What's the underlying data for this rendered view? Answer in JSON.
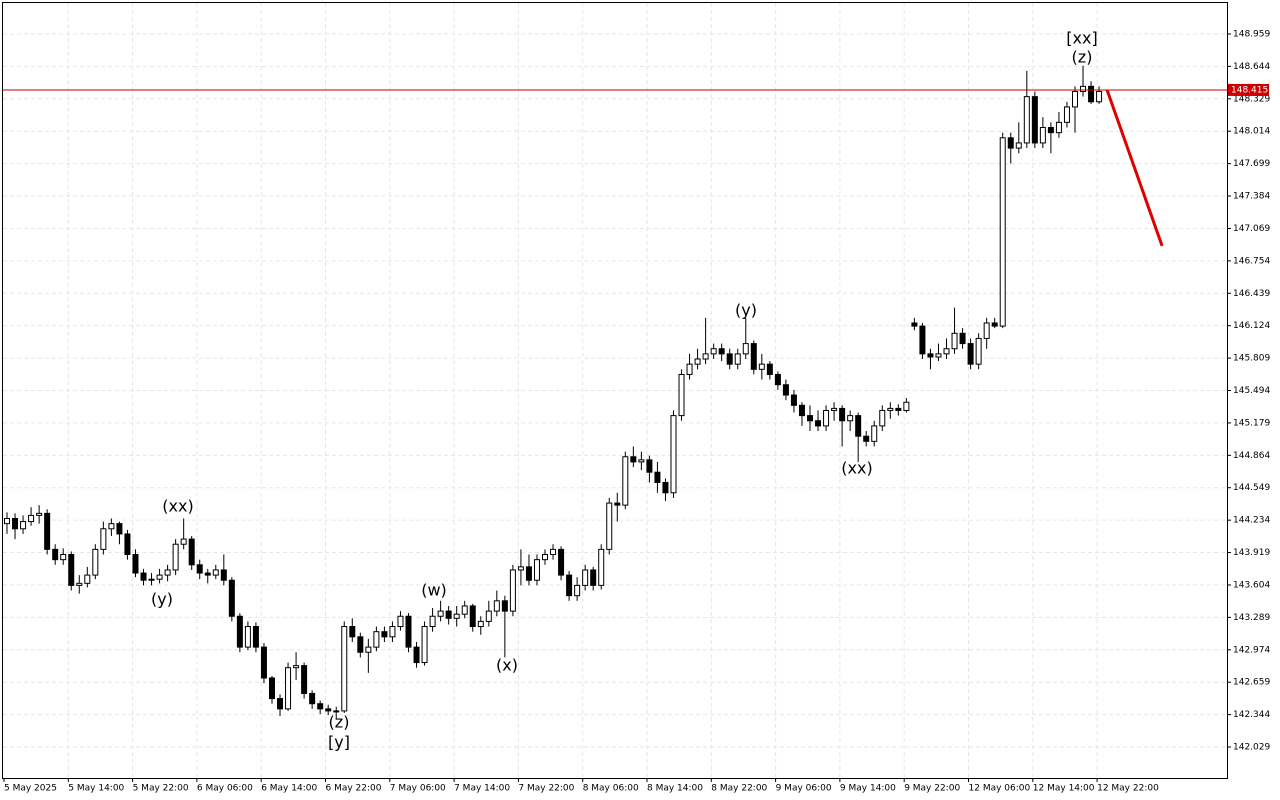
{
  "chart_data": {
    "type": "candlestick",
    "ylim": [
      141.728,
      149.26
    ],
    "yticks": [
      148.959,
      148.644,
      148.329,
      148.014,
      147.699,
      147.384,
      147.069,
      146.754,
      146.439,
      146.124,
      145.809,
      145.494,
      145.179,
      144.864,
      144.549,
      144.234,
      143.919,
      143.604,
      143.289,
      142.974,
      142.659,
      142.344,
      142.029
    ],
    "grid": true,
    "up_color": "#ffffff",
    "down_color": "#000000",
    "xlabels": [
      "5 May 2025",
      "5 May 14:00",
      "5 May 22:00",
      "6 May 06:00",
      "6 May 14:00",
      "6 May 22:00",
      "7 May 06:00",
      "7 May 14:00",
      "7 May 22:00",
      "8 May 06:00",
      "8 May 14:00",
      "8 May 22:00",
      "9 May 06:00",
      "9 May 14:00",
      "9 May 22:00",
      "12 May 06:00",
      "12 May 14:00",
      "12 May 22:00"
    ],
    "current_price": 148.415,
    "current_color": "#cc0000",
    "forecast": {
      "values": [
        148.415,
        146.899
      ],
      "color": "#e00000"
    },
    "annotations": [
      {
        "text": "(xx)",
        "color": "#1f1fdf"
      },
      {
        "text": "(y)",
        "color": "#1f1fdf"
      },
      {
        "text": "(z)",
        "color": "#1f1fdf"
      },
      {
        "text": "[y]",
        "color": "#3cbf3c"
      },
      {
        "text": "(w)",
        "color": "#1f1fdf"
      },
      {
        "text": "(x)",
        "color": "#1f1fdf"
      },
      {
        "text": "(y)",
        "color": "#1f1fdf"
      },
      {
        "text": "(xx)",
        "color": "#1f1fdf"
      },
      {
        "text": "[xx]",
        "color": "#3cbf3c"
      },
      {
        "text": "(z)",
        "color": "#1f1fdf"
      }
    ],
    "candles": [
      [
        144.2,
        144.31,
        144.1,
        144.25
      ],
      [
        144.25,
        144.3,
        144.05,
        144.15
      ],
      [
        144.15,
        144.28,
        144.1,
        144.22
      ],
      [
        144.22,
        144.36,
        144.18,
        144.28
      ],
      [
        144.28,
        144.38,
        144.2,
        144.3
      ],
      [
        144.3,
        144.34,
        143.9,
        143.95
      ],
      [
        143.95,
        144.0,
        143.8,
        143.85
      ],
      [
        143.85,
        143.96,
        143.8,
        143.9
      ],
      [
        143.9,
        143.93,
        143.55,
        143.6
      ],
      [
        143.6,
        143.7,
        143.52,
        143.62
      ],
      [
        143.62,
        143.78,
        143.58,
        143.7
      ],
      [
        143.7,
        144.0,
        143.66,
        143.95
      ],
      [
        143.95,
        144.22,
        143.9,
        144.15
      ],
      [
        144.15,
        144.25,
        144.08,
        144.2
      ],
      [
        144.2,
        144.22,
        144.0,
        144.1
      ],
      [
        144.1,
        144.14,
        143.85,
        143.9
      ],
      [
        143.9,
        143.95,
        143.68,
        143.72
      ],
      [
        143.72,
        143.76,
        143.6,
        143.65
      ],
      [
        143.65,
        143.72,
        143.6,
        143.66
      ],
      [
        143.66,
        143.76,
        143.62,
        143.7
      ],
      [
        143.7,
        143.8,
        143.64,
        143.75
      ],
      [
        143.75,
        144.05,
        143.7,
        144.0
      ],
      [
        144.0,
        144.25,
        143.95,
        144.05
      ],
      [
        144.05,
        144.08,
        143.75,
        143.8
      ],
      [
        143.8,
        143.85,
        143.66,
        143.72
      ],
      [
        143.72,
        143.76,
        143.62,
        143.7
      ],
      [
        143.7,
        143.8,
        143.66,
        143.75
      ],
      [
        143.75,
        143.9,
        143.6,
        143.65
      ],
      [
        143.65,
        143.68,
        143.25,
        143.3
      ],
      [
        143.3,
        143.33,
        142.95,
        143.0
      ],
      [
        143.0,
        143.25,
        142.97,
        143.2
      ],
      [
        143.2,
        143.24,
        142.95,
        143.0
      ],
      [
        143.0,
        143.04,
        142.65,
        142.7
      ],
      [
        142.7,
        142.72,
        142.45,
        142.5
      ],
      [
        142.5,
        142.54,
        142.33,
        142.4
      ],
      [
        142.4,
        142.85,
        142.38,
        142.8
      ],
      [
        142.8,
        142.95,
        142.68,
        142.82
      ],
      [
        142.82,
        142.85,
        142.5,
        142.55
      ],
      [
        142.55,
        142.58,
        142.4,
        142.45
      ],
      [
        142.45,
        142.48,
        142.35,
        142.4
      ],
      [
        142.4,
        142.44,
        142.34,
        142.38
      ],
      [
        142.38,
        142.42,
        142.3,
        142.38
      ],
      [
        142.38,
        143.25,
        142.36,
        143.2
      ],
      [
        143.2,
        143.28,
        143.05,
        143.1
      ],
      [
        143.1,
        143.14,
        142.9,
        142.95
      ],
      [
        142.95,
        143.08,
        142.75,
        143.0
      ],
      [
        143.0,
        143.2,
        142.96,
        143.15
      ],
      [
        143.15,
        143.2,
        143.05,
        143.1
      ],
      [
        143.1,
        143.25,
        143.05,
        143.2
      ],
      [
        143.2,
        143.35,
        143.16,
        143.3
      ],
      [
        143.3,
        143.33,
        142.95,
        143.0
      ],
      [
        143.0,
        143.05,
        142.8,
        142.85
      ],
      [
        142.85,
        143.25,
        142.82,
        143.2
      ],
      [
        143.2,
        143.38,
        143.15,
        143.3
      ],
      [
        143.3,
        143.45,
        143.25,
        143.35
      ],
      [
        143.35,
        143.4,
        143.22,
        143.28
      ],
      [
        143.28,
        143.4,
        143.2,
        143.32
      ],
      [
        143.32,
        143.45,
        143.28,
        143.4
      ],
      [
        143.4,
        143.42,
        143.15,
        143.2
      ],
      [
        143.2,
        143.3,
        143.12,
        143.25
      ],
      [
        143.25,
        143.45,
        143.2,
        143.35
      ],
      [
        143.35,
        143.55,
        143.3,
        143.45
      ],
      [
        143.45,
        143.5,
        142.9,
        143.35
      ],
      [
        143.35,
        143.8,
        143.3,
        143.75
      ],
      [
        143.75,
        143.95,
        143.6,
        143.78
      ],
      [
        143.78,
        143.9,
        143.6,
        143.65
      ],
      [
        143.65,
        143.9,
        143.6,
        143.85
      ],
      [
        143.85,
        143.95,
        143.8,
        143.9
      ],
      [
        143.9,
        144.0,
        143.85,
        143.95
      ],
      [
        143.95,
        143.98,
        143.65,
        143.7
      ],
      [
        143.7,
        143.74,
        143.45,
        143.5
      ],
      [
        143.5,
        143.68,
        143.45,
        143.6
      ],
      [
        143.6,
        143.8,
        143.55,
        143.75
      ],
      [
        143.75,
        143.78,
        143.55,
        143.6
      ],
      [
        143.6,
        144.0,
        143.56,
        143.95
      ],
      [
        143.95,
        144.45,
        143.9,
        144.4
      ],
      [
        144.4,
        144.5,
        144.22,
        144.38
      ],
      [
        144.38,
        144.9,
        144.34,
        144.85
      ],
      [
        144.85,
        144.95,
        144.75,
        144.8
      ],
      [
        144.8,
        144.9,
        144.72,
        144.82
      ],
      [
        144.82,
        144.86,
        144.6,
        144.7
      ],
      [
        144.7,
        144.8,
        144.5,
        144.6
      ],
      [
        144.6,
        144.64,
        144.42,
        144.5
      ],
      [
        144.5,
        145.3,
        144.45,
        145.25
      ],
      [
        145.25,
        145.7,
        145.2,
        145.65
      ],
      [
        145.65,
        145.85,
        145.6,
        145.75
      ],
      [
        145.75,
        145.9,
        145.7,
        145.8
      ],
      [
        145.8,
        146.2,
        145.75,
        145.85
      ],
      [
        145.85,
        145.95,
        145.8,
        145.9
      ],
      [
        145.9,
        145.95,
        145.78,
        145.85
      ],
      [
        145.85,
        145.9,
        145.7,
        145.75
      ],
      [
        145.75,
        145.9,
        145.7,
        145.85
      ],
      [
        145.85,
        146.2,
        145.8,
        145.95
      ],
      [
        145.95,
        145.98,
        145.65,
        145.7
      ],
      [
        145.7,
        145.85,
        145.6,
        145.75
      ],
      [
        145.75,
        145.78,
        145.6,
        145.65
      ],
      [
        145.65,
        145.68,
        145.5,
        145.55
      ],
      [
        145.55,
        145.6,
        145.4,
        145.45
      ],
      [
        145.45,
        145.5,
        145.28,
        145.35
      ],
      [
        145.35,
        145.38,
        145.15,
        145.25
      ],
      [
        145.25,
        145.35,
        145.1,
        145.2
      ],
      [
        145.2,
        145.3,
        145.1,
        145.15
      ],
      [
        145.15,
        145.35,
        145.1,
        145.3
      ],
      [
        145.3,
        145.38,
        145.2,
        145.32
      ],
      [
        145.32,
        145.35,
        144.95,
        145.2
      ],
      [
        145.2,
        145.3,
        145.1,
        145.25
      ],
      [
        145.25,
        145.28,
        144.8,
        145.05
      ],
      [
        145.05,
        145.1,
        144.95,
        145.0
      ],
      [
        145.0,
        145.2,
        144.95,
        145.15
      ],
      [
        145.15,
        145.35,
        145.1,
        145.3
      ],
      [
        145.3,
        145.38,
        145.22,
        145.32
      ],
      [
        145.32,
        145.36,
        145.25,
        145.3
      ],
      [
        145.3,
        145.42,
        145.28,
        145.38
      ],
      [
        146.15,
        146.2,
        146.08,
        146.12
      ],
      [
        146.12,
        146.15,
        145.8,
        145.85
      ],
      [
        145.85,
        145.9,
        145.7,
        145.82
      ],
      [
        145.82,
        145.95,
        145.78,
        145.85
      ],
      [
        145.85,
        146.0,
        145.8,
        145.9
      ],
      [
        145.9,
        146.3,
        145.85,
        146.05
      ],
      [
        146.05,
        146.1,
        145.9,
        145.95
      ],
      [
        145.95,
        146.0,
        145.7,
        145.75
      ],
      [
        145.75,
        146.05,
        145.7,
        146.0
      ],
      [
        146.0,
        146.2,
        145.9,
        146.15
      ],
      [
        146.15,
        146.2,
        146.1,
        146.12
      ],
      [
        146.12,
        148.0,
        146.1,
        147.95
      ],
      [
        147.95,
        148.0,
        147.7,
        147.85
      ],
      [
        147.85,
        148.1,
        147.8,
        147.9
      ],
      [
        147.9,
        148.6,
        147.85,
        148.35
      ],
      [
        148.35,
        148.4,
        147.85,
        147.9
      ],
      [
        147.9,
        148.15,
        147.85,
        148.05
      ],
      [
        148.05,
        148.1,
        147.8,
        148.0
      ],
      [
        148.0,
        148.2,
        147.95,
        148.1
      ],
      [
        148.1,
        148.3,
        148.05,
        148.25
      ],
      [
        148.25,
        148.45,
        148.0,
        148.4
      ],
      [
        148.4,
        148.65,
        148.35,
        148.45
      ],
      [
        148.45,
        148.5,
        148.28,
        148.3
      ],
      [
        148.3,
        148.45,
        148.28,
        148.4
      ]
    ]
  }
}
